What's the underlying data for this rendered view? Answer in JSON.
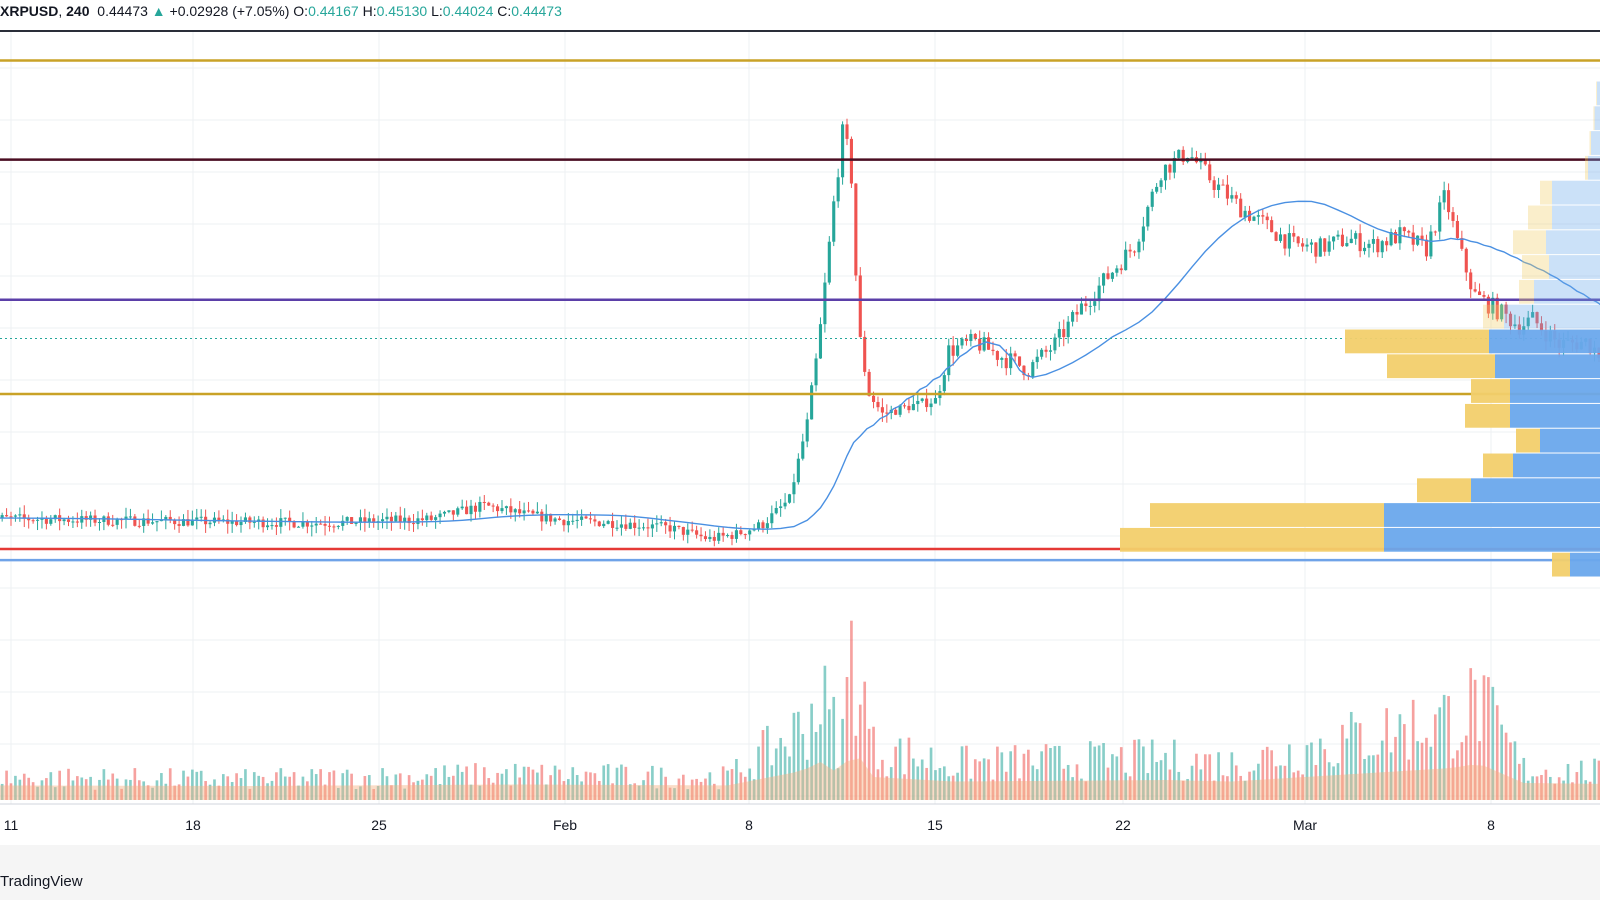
{
  "header": {
    "symbol": "XRPUSD",
    "interval": "240",
    "last": "0.44473",
    "arrow": "▲",
    "change": "+0.02928 (+7.05%)",
    "o_label": "O:",
    "o": "0.44167",
    "h_label": "H:",
    "h": "0.45130",
    "l_label": "L:",
    "l": "0.44024",
    "c_label": "C:",
    "c": "0.44473"
  },
  "branding": {
    "text": "TradingView"
  },
  "colors": {
    "up": "#26a69a",
    "down": "#ef5350",
    "ma": "#4a90e2",
    "resistance_gold": "#c9a227",
    "resistance_dark": "#4a0d22",
    "support_purple": "#5b3fa8",
    "support_red": "#e53935",
    "support_blue": "#6fa3e8",
    "vp_up": "#f2cf6b",
    "vp_down": "#6aa8ec",
    "vol_ma": "#f5b183"
  },
  "chart_data": {
    "type": "candlestick",
    "symbol": "XRPUSD",
    "timeframe": "240",
    "x_ticks": [
      "11",
      "18",
      "25",
      "Feb",
      "8",
      "15",
      "22",
      "Mar",
      "8"
    ],
    "x_range": [
      "Jan 10",
      "Mar 9"
    ],
    "ylim": [
      0.24,
      0.69
    ],
    "ohlc_last": {
      "open": 0.44167,
      "high": 0.4513,
      "low": 0.44024,
      "close": 0.44473
    },
    "price_path": [
      [
        0,
        0.3
      ],
      [
        5,
        0.298
      ],
      [
        9,
        0.297
      ],
      [
        13,
        0.296
      ],
      [
        17,
        0.299
      ],
      [
        19,
        0.31
      ],
      [
        20.5,
        0.303
      ],
      [
        22,
        0.298
      ],
      [
        24,
        0.296
      ],
      [
        26,
        0.292
      ],
      [
        27.5,
        0.283
      ],
      [
        28.5,
        0.287
      ],
      [
        29.5,
        0.295
      ],
      [
        30.5,
        0.315
      ],
      [
        31.2,
        0.38
      ],
      [
        31.6,
        0.44
      ],
      [
        31.9,
        0.5
      ],
      [
        32.2,
        0.56
      ],
      [
        32.5,
        0.61
      ],
      [
        32.8,
        0.59
      ],
      [
        33.1,
        0.45
      ],
      [
        33.5,
        0.4
      ],
      [
        34,
        0.384
      ],
      [
        35,
        0.39
      ],
      [
        36,
        0.395
      ],
      [
        36.5,
        0.435
      ],
      [
        37.5,
        0.442
      ],
      [
        38.5,
        0.43
      ],
      [
        39.5,
        0.42
      ],
      [
        40.5,
        0.44
      ],
      [
        41.5,
        0.47
      ],
      [
        42.5,
        0.495
      ],
      [
        43.5,
        0.52
      ],
      [
        44.5,
        0.58
      ],
      [
        45.5,
        0.595
      ],
      [
        46.5,
        0.57
      ],
      [
        47.5,
        0.55
      ],
      [
        48.5,
        0.535
      ],
      [
        49.5,
        0.52
      ],
      [
        50.5,
        0.518
      ],
      [
        51.5,
        0.525
      ],
      [
        52.5,
        0.52
      ],
      [
        53.5,
        0.528
      ],
      [
        54.5,
        0.517
      ],
      [
        55.2,
        0.56
      ],
      [
        55.7,
        0.52
      ],
      [
        56.3,
        0.48
      ],
      [
        57,
        0.47
      ],
      [
        58,
        0.455
      ],
      [
        58.5,
        0.46
      ],
      [
        59.5,
        0.44
      ],
      [
        60.5,
        0.442
      ],
      [
        61.5,
        0.425
      ],
      [
        62.5,
        0.444
      ],
      [
        63,
        0.452
      ]
    ],
    "volume_path": [
      [
        0,
        0.22
      ],
      [
        10,
        0.2
      ],
      [
        20,
        0.25
      ],
      [
        28,
        0.22
      ],
      [
        30.8,
        0.7
      ],
      [
        31.5,
        1.0
      ],
      [
        32.3,
        0.55
      ],
      [
        32.7,
        1.5
      ],
      [
        33.5,
        0.5
      ],
      [
        36.5,
        0.35
      ],
      [
        44.5,
        0.4
      ],
      [
        47,
        0.35
      ],
      [
        55.3,
        0.8
      ],
      [
        56.3,
        0.95
      ],
      [
        58,
        0.3
      ],
      [
        63,
        0.25
      ]
    ],
    "levels": [
      {
        "price": 0.669,
        "color": "resistance_gold"
      },
      {
        "price": 0.589,
        "color": "resistance_dark"
      },
      {
        "price": 0.476,
        "color": "support_purple"
      },
      {
        "price": 0.4,
        "color": "resistance_gold"
      },
      {
        "price": 0.275,
        "color": "support_red"
      },
      {
        "price": 0.266,
        "color": "support_blue"
      }
    ],
    "volume_profile": [
      {
        "price": 0.642,
        "up": 0.003,
        "down": 0.01
      },
      {
        "price": 0.622,
        "up": 0.004,
        "down": 0.018
      },
      {
        "price": 0.602,
        "up": 0.005,
        "down": 0.03
      },
      {
        "price": 0.582,
        "up": 0.01,
        "down": 0.04
      },
      {
        "price": 0.562,
        "up": 0.04,
        "down": 0.16
      },
      {
        "price": 0.542,
        "up": 0.08,
        "down": 0.16
      },
      {
        "price": 0.522,
        "up": 0.11,
        "down": 0.18
      },
      {
        "price": 0.502,
        "up": 0.09,
        "down": 0.17
      },
      {
        "price": 0.482,
        "up": 0.05,
        "down": 0.22
      },
      {
        "price": 0.462,
        "up": 0.07,
        "down": 0.32
      },
      {
        "price": 0.442,
        "up": 0.48,
        "down": 0.37
      },
      {
        "price": 0.422,
        "up": 0.36,
        "down": 0.35
      },
      {
        "price": 0.402,
        "up": 0.13,
        "down": 0.3
      },
      {
        "price": 0.382,
        "up": 0.15,
        "down": 0.3
      },
      {
        "price": 0.362,
        "up": 0.08,
        "down": 0.2
      },
      {
        "price": 0.342,
        "up": 0.1,
        "down": 0.29
      },
      {
        "price": 0.322,
        "up": 0.18,
        "down": 0.43
      },
      {
        "price": 0.302,
        "up": 0.78,
        "down": 0.72
      },
      {
        "price": 0.282,
        "up": 0.88,
        "down": 0.72
      },
      {
        "price": 0.262,
        "up": 0.06,
        "down": 0.1
      }
    ]
  }
}
